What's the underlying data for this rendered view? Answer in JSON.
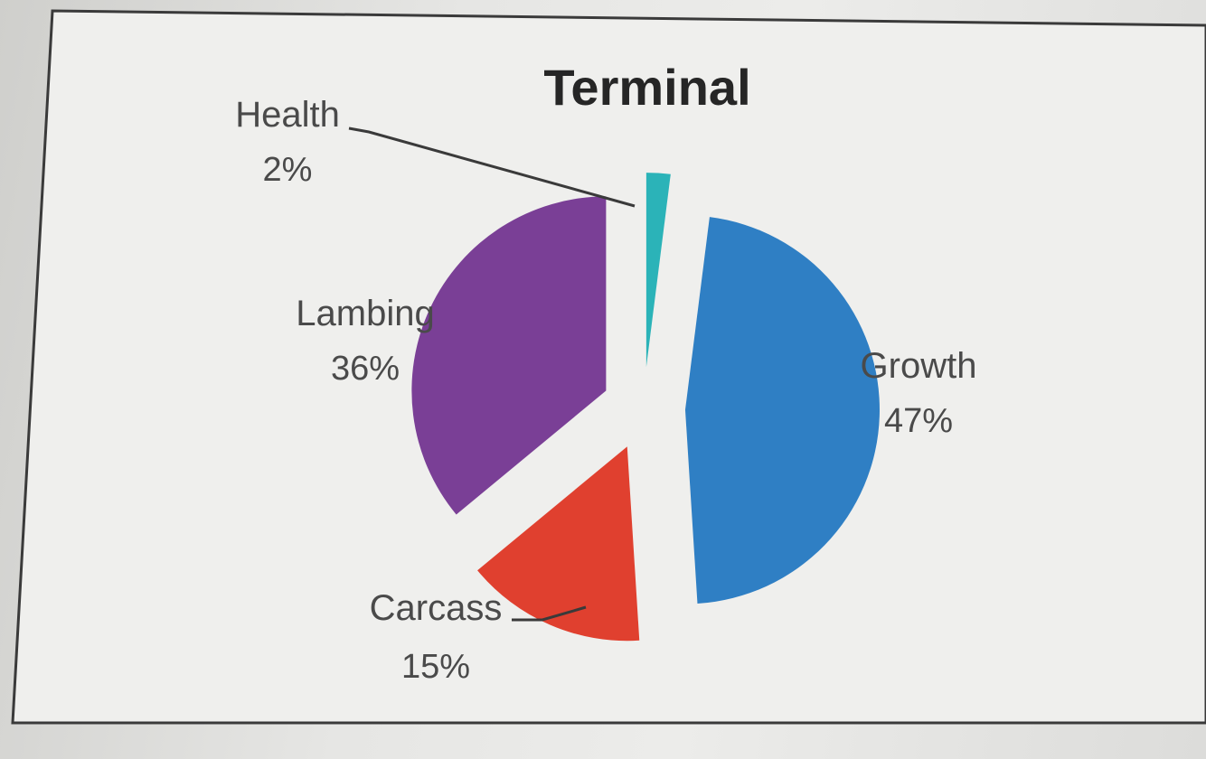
{
  "chart_data": {
    "type": "pie",
    "title": "Terminal",
    "unit": "%",
    "slices": [
      {
        "label": "Health",
        "value": 2,
        "display": "2%",
        "color": "#2bb3b8"
      },
      {
        "label": "Growth",
        "value": 47,
        "display": "47%",
        "color": "#2f7fc4"
      },
      {
        "label": "Carcass",
        "value": 15,
        "display": "15%",
        "color": "#e0402f"
      },
      {
        "label": "Lambing",
        "value": 36,
        "display": "36%",
        "color": "#7a3f96"
      }
    ],
    "exploded": true,
    "legend": "none (data labels with leader lines)"
  }
}
